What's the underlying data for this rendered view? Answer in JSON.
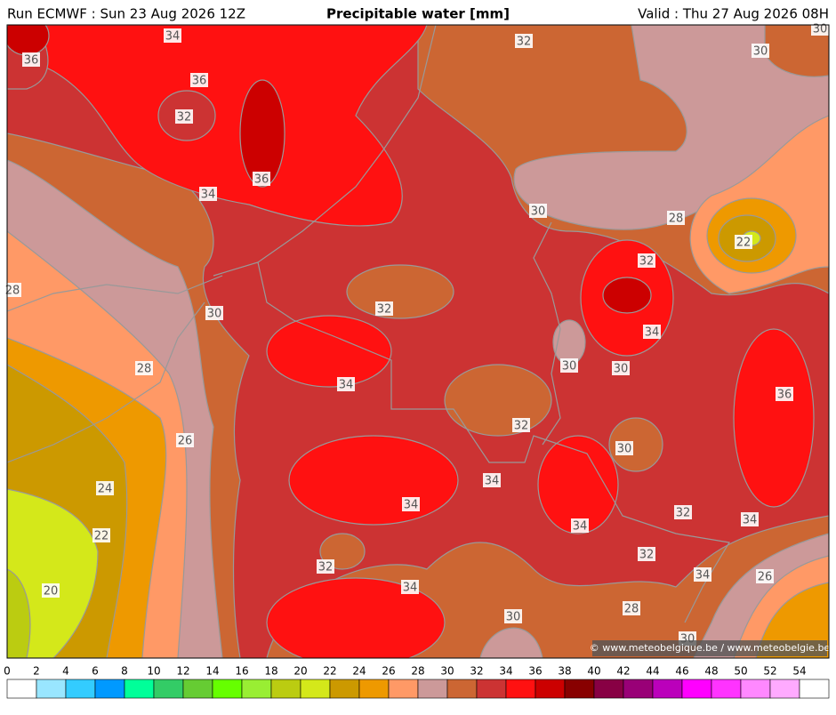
{
  "header": {
    "left": "Run ECMWF : Sun 23 Aug 2026 12Z",
    "title": "Precipitable water [mm]",
    "right": "Valid : Thu 27 Aug 2026 08H"
  },
  "contour_labels": [
    34,
    36,
    36,
    32,
    36,
    34,
    32,
    30,
    30,
    30,
    28,
    22,
    32,
    28,
    30,
    32,
    34,
    30,
    30,
    28,
    34,
    36,
    26,
    32,
    30,
    24,
    34,
    34,
    32,
    34,
    22,
    34,
    32,
    32,
    34,
    26,
    34,
    20,
    28,
    30,
    30
  ],
  "credit": "© www.meteobelgique.be / www.meteobelgie.be",
  "colorbar": {
    "ticks": [
      0,
      2,
      4,
      6,
      8,
      10,
      12,
      14,
      16,
      18,
      20,
      22,
      24,
      26,
      28,
      30,
      32,
      34,
      36,
      38,
      40,
      42,
      44,
      46,
      48,
      50,
      52,
      54
    ],
    "colors": [
      "#ffffff",
      "#99e6ff",
      "#33ccff",
      "#0099ff",
      "#00ff99",
      "#33cc66",
      "#66cc33",
      "#66ff00",
      "#99ee33",
      "#bbcc11",
      "#d4e81a",
      "#cc9900",
      "#ee9900",
      "#ff9966",
      "#cc9999",
      "#cc6633",
      "#cc3333",
      "#ff1111",
      "#cc0000",
      "#880000",
      "#880044",
      "#990077",
      "#bb00bb",
      "#ff00ff",
      "#ff33ff",
      "#ff88ff",
      "#ffaaff",
      "#ffffff"
    ]
  }
}
